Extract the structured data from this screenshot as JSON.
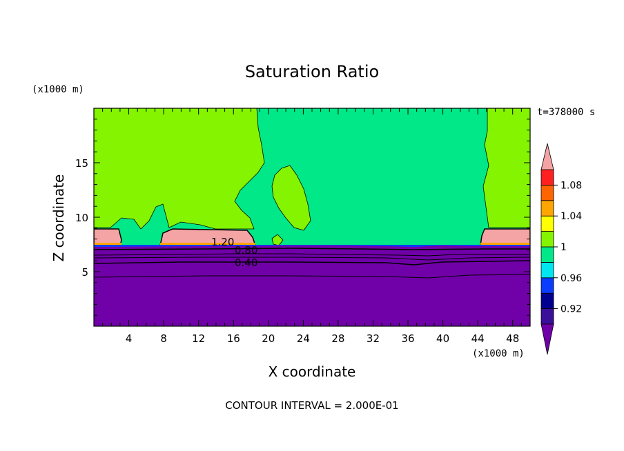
{
  "chart_data": {
    "type": "heatmap",
    "title": "Saturation Ratio",
    "xlabel": "X coordinate",
    "ylabel": "Z coordinate",
    "x_unit": "(x1000 m)",
    "y_unit": "(x1000 m)",
    "time_label": "t=378000 s",
    "footer": "CONTOUR INTERVAL = 2.000E-01",
    "xlim": [
      0,
      50
    ],
    "ylim": [
      0,
      20
    ],
    "x_ticks": [
      4,
      8,
      12,
      16,
      20,
      24,
      28,
      32,
      36,
      40,
      44,
      48
    ],
    "y_ticks": [
      5,
      10,
      15
    ],
    "contour_labels": [
      "1.20",
      "0.80",
      "0.40"
    ],
    "colorbar": {
      "tick_labels": [
        "0.92",
        "0.96",
        "1",
        "1.04",
        "1.08"
      ],
      "levels": [
        0.9,
        0.92,
        0.94,
        0.96,
        0.98,
        1.0,
        1.02,
        1.04,
        1.06,
        1.08,
        1.1
      ],
      "colors": [
        "#3a0f9a",
        "#000090",
        "#0a3cff",
        "#00e6f0",
        "#00e887",
        "#84f400",
        "#ffff00",
        "#ffa500",
        "#ff6400",
        "#ff2020"
      ],
      "under_color": "#7000a8",
      "over_color": "#f4a4a4"
    },
    "fields": {
      "lower_region_color": "#7000a8",
      "upper_dry_color": "#84f400",
      "upper_moist_color": "#00e887",
      "cloud_color": "#f4a4a4"
    }
  }
}
